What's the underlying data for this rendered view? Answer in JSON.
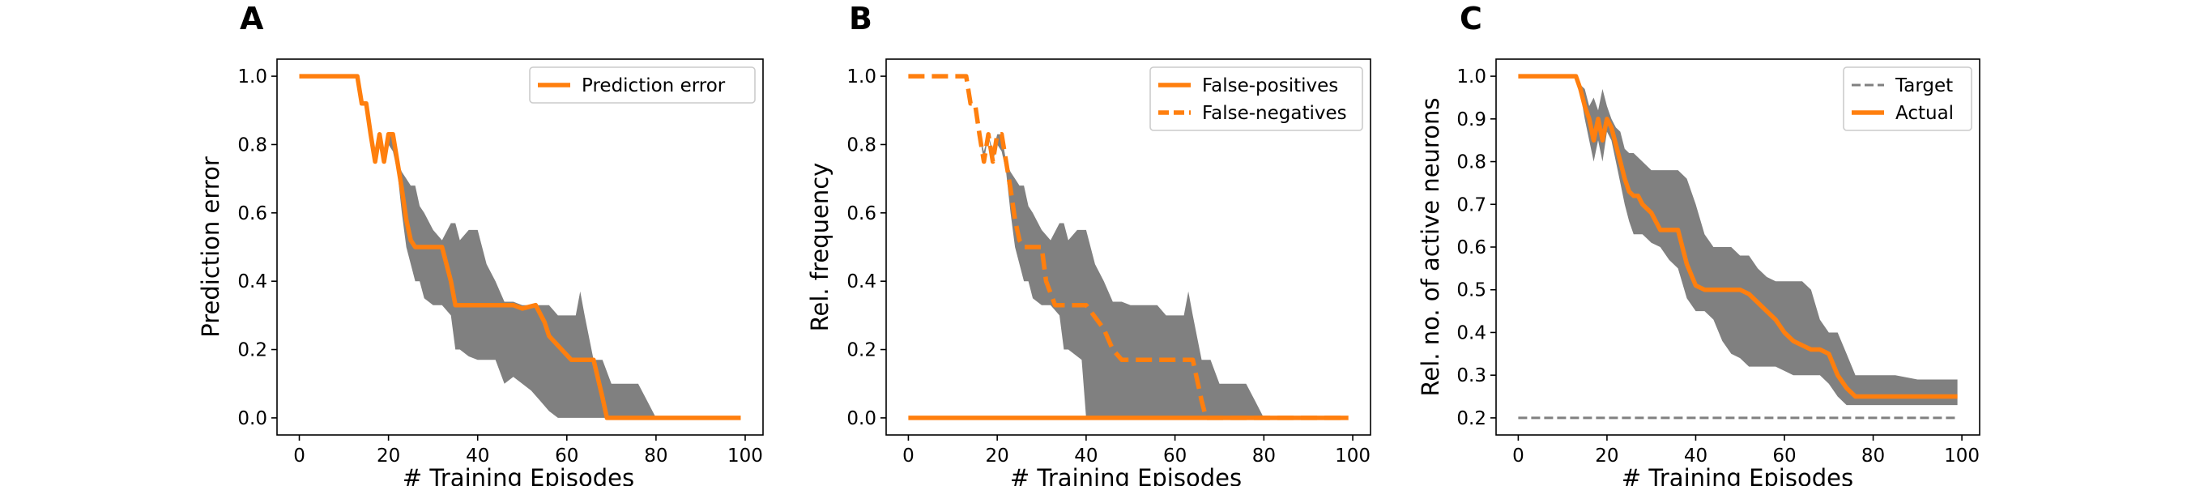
{
  "figure": {
    "panels": [
      {
        "letter": "A",
        "ylabel": "Prediction error",
        "xlabel": "# Training Episodes"
      },
      {
        "letter": "B",
        "ylabel": "Rel. frequency",
        "xlabel": "# Training Episodes"
      },
      {
        "letter": "C",
        "ylabel": "Rel. no. of active neurons",
        "xlabel": "# Training Episodes"
      }
    ]
  },
  "colors": {
    "accent": "#ff7f0e",
    "band": "#808080",
    "target": "#808080"
  },
  "chart_data": [
    {
      "type": "line",
      "title": "",
      "xlabel": "# Training Episodes",
      "ylabel": "Prediction error",
      "xlim": [
        -5,
        104
      ],
      "ylim": [
        -0.05,
        1.05
      ],
      "xticks": [
        0,
        20,
        40,
        60,
        80,
        100
      ],
      "yticks": [
        0.0,
        0.2,
        0.4,
        0.6,
        0.8,
        1.0
      ],
      "legend": "top-right",
      "series": [
        {
          "name": "Prediction error",
          "style": "solid",
          "x": [
            0,
            13,
            14,
            15,
            16,
            17,
            18,
            19,
            20,
            21,
            22,
            23,
            24,
            25,
            26,
            27,
            32,
            34,
            35,
            45,
            48,
            50,
            53,
            55,
            56,
            61,
            62,
            64,
            66,
            68,
            69,
            75,
            80,
            99
          ],
          "y": [
            1.0,
            1.0,
            0.92,
            0.92,
            0.83,
            0.75,
            0.83,
            0.75,
            0.83,
            0.83,
            0.75,
            0.67,
            0.58,
            0.52,
            0.5,
            0.5,
            0.5,
            0.4,
            0.33,
            0.33,
            0.33,
            0.32,
            0.33,
            0.28,
            0.24,
            0.17,
            0.17,
            0.17,
            0.17,
            0.06,
            0.0,
            0.0,
            0.0,
            0.0
          ]
        }
      ],
      "band": {
        "x": [
          0,
          13,
          14,
          15,
          16,
          17,
          18,
          19,
          20,
          21,
          22,
          23,
          24,
          25,
          26,
          27,
          28,
          30,
          32,
          34,
          35,
          36,
          38,
          40,
          42,
          44,
          46,
          48,
          50,
          52,
          54,
          56,
          58,
          60,
          62,
          63,
          64,
          66,
          68,
          70,
          72,
          74,
          76,
          78,
          80,
          85,
          99
        ],
        "upper": [
          1.0,
          1.0,
          0.92,
          0.92,
          0.83,
          0.78,
          0.83,
          0.78,
          0.83,
          0.83,
          0.75,
          0.72,
          0.7,
          0.68,
          0.68,
          0.62,
          0.6,
          0.55,
          0.52,
          0.57,
          0.57,
          0.52,
          0.55,
          0.55,
          0.45,
          0.4,
          0.34,
          0.34,
          0.33,
          0.33,
          0.33,
          0.33,
          0.3,
          0.3,
          0.3,
          0.37,
          0.3,
          0.17,
          0.17,
          0.1,
          0.1,
          0.1,
          0.1,
          0.05,
          0.0,
          0.0,
          0.0
        ],
        "lower": [
          1.0,
          1.0,
          0.92,
          0.92,
          0.83,
          0.75,
          0.83,
          0.75,
          0.8,
          0.78,
          0.72,
          0.6,
          0.5,
          0.45,
          0.4,
          0.4,
          0.35,
          0.33,
          0.33,
          0.3,
          0.2,
          0.2,
          0.18,
          0.17,
          0.17,
          0.17,
          0.1,
          0.12,
          0.1,
          0.08,
          0.05,
          0.02,
          0.0,
          0.0,
          0.0,
          0.0,
          0.0,
          0.0,
          0.0,
          0.0,
          0.0,
          0.0,
          0.0,
          0.0,
          0.0,
          0.0,
          0.0
        ]
      }
    },
    {
      "type": "line",
      "title": "",
      "xlabel": "# Training Episodes",
      "ylabel": "Rel. frequency",
      "xlim": [
        -5,
        104
      ],
      "ylim": [
        -0.05,
        1.05
      ],
      "xticks": [
        0,
        20,
        40,
        60,
        80,
        100
      ],
      "yticks": [
        0.0,
        0.2,
        0.4,
        0.6,
        0.8,
        1.0
      ],
      "legend": "top-right",
      "series": [
        {
          "name": "False-positives",
          "style": "solid",
          "x": [
            0,
            99
          ],
          "y": [
            0.0,
            0.0
          ]
        },
        {
          "name": "False-negatives",
          "style": "dashed",
          "x": [
            0,
            13,
            14,
            15,
            16,
            17,
            18,
            19,
            20,
            21,
            22,
            23,
            24,
            25,
            26,
            30,
            31,
            33,
            34,
            40,
            44,
            46,
            48,
            50,
            60,
            64,
            66,
            67,
            68,
            99
          ],
          "y": [
            1.0,
            1.0,
            0.92,
            0.92,
            0.83,
            0.75,
            0.83,
            0.75,
            0.83,
            0.83,
            0.75,
            0.67,
            0.58,
            0.52,
            0.5,
            0.5,
            0.4,
            0.33,
            0.33,
            0.33,
            0.26,
            0.2,
            0.17,
            0.17,
            0.17,
            0.17,
            0.05,
            0.0,
            0.0,
            0.0
          ]
        }
      ],
      "band": {
        "x": [
          0,
          13,
          14,
          15,
          16,
          17,
          18,
          19,
          20,
          21,
          22,
          23,
          24,
          25,
          26,
          27,
          28,
          30,
          32,
          34,
          35,
          36,
          38,
          39,
          40,
          42,
          44,
          46,
          48,
          50,
          52,
          54,
          56,
          58,
          60,
          62,
          63,
          64,
          66,
          68,
          70,
          72,
          74,
          76,
          78,
          80,
          85,
          99
        ],
        "upper": [
          1.0,
          1.0,
          0.92,
          0.92,
          0.83,
          0.78,
          0.83,
          0.78,
          0.83,
          0.83,
          0.75,
          0.72,
          0.7,
          0.68,
          0.68,
          0.62,
          0.6,
          0.55,
          0.52,
          0.57,
          0.57,
          0.52,
          0.55,
          0.55,
          0.55,
          0.45,
          0.4,
          0.34,
          0.34,
          0.33,
          0.33,
          0.33,
          0.33,
          0.3,
          0.3,
          0.3,
          0.37,
          0.3,
          0.17,
          0.17,
          0.1,
          0.1,
          0.1,
          0.1,
          0.05,
          0.0,
          0.0,
          0.0
        ],
        "lower": [
          1.0,
          1.0,
          0.92,
          0.92,
          0.83,
          0.75,
          0.83,
          0.75,
          0.8,
          0.78,
          0.72,
          0.6,
          0.5,
          0.45,
          0.4,
          0.4,
          0.35,
          0.33,
          0.33,
          0.3,
          0.2,
          0.2,
          0.18,
          0.17,
          0.0,
          0.0,
          0.0,
          0.0,
          0.0,
          0.0,
          0.0,
          0.0,
          0.0,
          0.0,
          0.0,
          0.0,
          0.0,
          0.0,
          0.0,
          0.0,
          0.0,
          0.0,
          0.0,
          0.0,
          0.0,
          0.0,
          0.0,
          0.0
        ]
      }
    },
    {
      "type": "line",
      "title": "",
      "xlabel": "# Training Episodes",
      "ylabel": "Rel. no. of active neurons",
      "xlim": [
        -5,
        104
      ],
      "ylim": [
        0.16,
        1.04
      ],
      "xticks": [
        0,
        20,
        40,
        60,
        80,
        100
      ],
      "yticks": [
        0.2,
        0.3,
        0.4,
        0.5,
        0.6,
        0.7,
        0.8,
        0.9,
        1.0
      ],
      "legend": "top-right",
      "series": [
        {
          "name": "Target",
          "style": "dashed-gray",
          "x": [
            0,
            99
          ],
          "y": [
            0.2,
            0.2
          ]
        },
        {
          "name": "Actual",
          "style": "solid",
          "x": [
            0,
            13,
            14,
            15,
            16,
            17,
            18,
            19,
            20,
            21,
            22,
            23,
            24,
            25,
            26,
            27,
            28,
            30,
            32,
            34,
            36,
            37,
            38,
            40,
            42,
            44,
            46,
            48,
            50,
            52,
            54,
            56,
            58,
            60,
            62,
            64,
            66,
            68,
            70,
            72,
            74,
            76,
            77,
            80,
            99
          ],
          "y": [
            1.0,
            1.0,
            0.97,
            0.93,
            0.9,
            0.85,
            0.9,
            0.85,
            0.9,
            0.88,
            0.84,
            0.8,
            0.76,
            0.73,
            0.72,
            0.72,
            0.7,
            0.68,
            0.64,
            0.64,
            0.64,
            0.6,
            0.56,
            0.51,
            0.5,
            0.5,
            0.5,
            0.5,
            0.5,
            0.49,
            0.47,
            0.45,
            0.43,
            0.4,
            0.38,
            0.37,
            0.36,
            0.36,
            0.35,
            0.3,
            0.27,
            0.25,
            0.25,
            0.25,
            0.25
          ]
        }
      ],
      "band": {
        "x": [
          0,
          13,
          14,
          15,
          16,
          17,
          18,
          19,
          20,
          21,
          22,
          23,
          24,
          25,
          26,
          28,
          30,
          32,
          34,
          36,
          38,
          40,
          42,
          44,
          46,
          48,
          50,
          52,
          54,
          56,
          58,
          60,
          62,
          64,
          66,
          68,
          70,
          72,
          74,
          76,
          78,
          80,
          85,
          90,
          95,
          99
        ],
        "upper": [
          1.0,
          1.0,
          0.98,
          0.97,
          0.93,
          0.95,
          0.92,
          0.97,
          0.93,
          0.9,
          0.88,
          0.87,
          0.83,
          0.82,
          0.82,
          0.8,
          0.78,
          0.78,
          0.78,
          0.78,
          0.76,
          0.7,
          0.63,
          0.6,
          0.6,
          0.6,
          0.58,
          0.58,
          0.55,
          0.53,
          0.52,
          0.52,
          0.52,
          0.52,
          0.5,
          0.43,
          0.4,
          0.4,
          0.35,
          0.3,
          0.3,
          0.3,
          0.3,
          0.29,
          0.29,
          0.29
        ],
        "lower": [
          1.0,
          1.0,
          0.96,
          0.9,
          0.85,
          0.8,
          0.85,
          0.8,
          0.87,
          0.85,
          0.8,
          0.75,
          0.7,
          0.66,
          0.63,
          0.63,
          0.61,
          0.6,
          0.57,
          0.55,
          0.48,
          0.45,
          0.45,
          0.43,
          0.38,
          0.35,
          0.34,
          0.32,
          0.32,
          0.32,
          0.32,
          0.31,
          0.3,
          0.3,
          0.3,
          0.3,
          0.28,
          0.25,
          0.23,
          0.23,
          0.23,
          0.23,
          0.23,
          0.23,
          0.23,
          0.23
        ]
      }
    }
  ]
}
